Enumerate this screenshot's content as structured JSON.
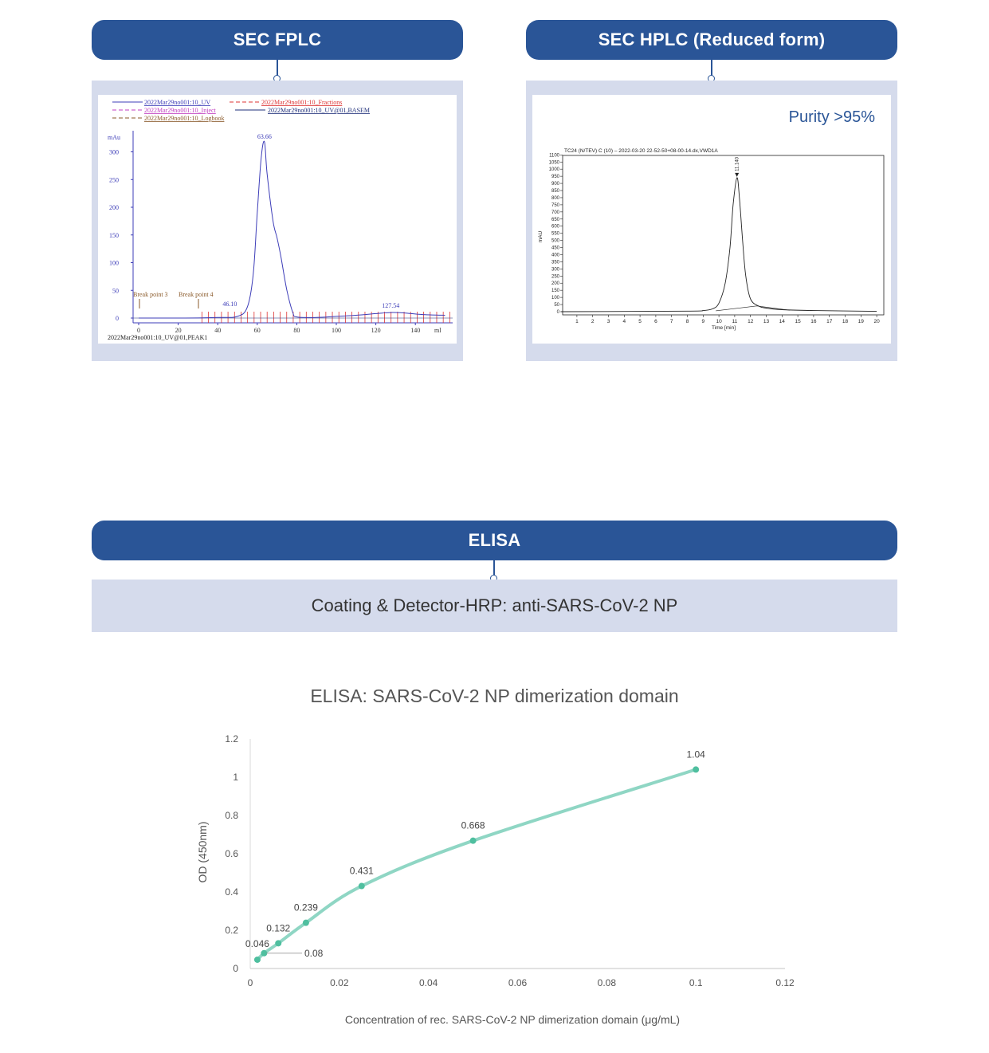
{
  "headers": {
    "sec_fplc": "SEC FPLC",
    "sec_hplc": "SEC HPLC (Reduced form)",
    "elisa": "ELISA"
  },
  "fplc": {
    "legend": [
      {
        "label": "2022Mar29no001:10_UV",
        "color": "#3d3db8"
      },
      {
        "label": "2022Mar29no001:10_Fractions",
        "color": "#d33"
      },
      {
        "label": "2022Mar29no001:10_Inject",
        "color": "#c03cc0"
      },
      {
        "label": "2022Mar29no001:10_UV@01,BASEM",
        "color": "#1f2f7a"
      },
      {
        "label": "2022Mar29no001:10_Logbook",
        "color": "#8a5a2a"
      }
    ],
    "y_unit": "mAu",
    "y_ticks": [
      "0",
      "50",
      "100",
      "150",
      "200",
      "250",
      "300"
    ],
    "x_ticks": [
      "0",
      "20",
      "40",
      "60",
      "80",
      "100",
      "120",
      "140"
    ],
    "x_unit": "ml",
    "peak_label": "63.66",
    "minor_peak_1": "46.10",
    "minor_peak_2": "127.54",
    "break_point_3": "Break point 3",
    "break_point_4": "Break point 4",
    "footer": "2022Mar29no001:10_UV@01,PEAK1"
  },
  "hplc": {
    "purity": "Purity >95%",
    "title": "TC24 (N/TEV) C (10) – 2022-03-20 22-52-50+08-00-14.dx,VWD1A",
    "y_label": "mAU",
    "x_label": "Time [min]",
    "peak_label": "11.140",
    "y_ticks": [
      "0",
      "50",
      "100",
      "150",
      "200",
      "250",
      "300",
      "350",
      "400",
      "450",
      "500",
      "550",
      "600",
      "650",
      "700",
      "750",
      "800",
      "850",
      "900",
      "950",
      "1000",
      "1050",
      "1100"
    ],
    "x_ticks": [
      "1",
      "2",
      "3",
      "4",
      "5",
      "6",
      "7",
      "8",
      "9",
      "10",
      "11",
      "12",
      "13",
      "14",
      "15",
      "16",
      "17",
      "18",
      "19",
      "20"
    ]
  },
  "elisa": {
    "band_text": "Coating & Detector-HRP: anti-SARS-CoV-2 NP",
    "chart_title": "ELISA: SARS-CoV-2 NP dimerization domain"
  },
  "chart_data": [
    {
      "type": "line",
      "panel": "SEC FPLC",
      "x": [
        0,
        20,
        40,
        50,
        55,
        58,
        60,
        62,
        63.66,
        65,
        68,
        70,
        72,
        75,
        78,
        80,
        90,
        100,
        110,
        120,
        127.54,
        135,
        145,
        155
      ],
      "y": [
        0,
        0,
        1,
        3,
        20,
        80,
        190,
        290,
        318,
        260,
        175,
        145,
        110,
        50,
        10,
        2,
        1,
        3,
        5,
        8,
        10,
        9,
        6,
        5
      ],
      "xlabel": "ml",
      "ylabel": "mAu",
      "xlim": [
        -5,
        160
      ],
      "ylim": [
        -5,
        330
      ],
      "annotations": [
        "63.66",
        "46.10",
        "127.54",
        "Break point 3",
        "Break point 4"
      ]
    },
    {
      "type": "line",
      "panel": "SEC HPLC (Reduced form)",
      "x": [
        0,
        8,
        9,
        9.6,
        10.0,
        10.4,
        10.7,
        10.9,
        11.14,
        11.3,
        11.5,
        11.7,
        12.0,
        12.5,
        13,
        14,
        16,
        20
      ],
      "y": [
        0,
        4,
        8,
        20,
        60,
        200,
        450,
        750,
        940,
        800,
        500,
        250,
        90,
        40,
        25,
        14,
        8,
        2
      ],
      "xlabel": "Time [min]",
      "ylabel": "mAU",
      "xlim": [
        0,
        20.5
      ],
      "ylim": [
        -10,
        1100
      ],
      "annotations": [
        "11.140"
      ]
    },
    {
      "type": "line",
      "title": "ELISA: SARS-CoV-2 NP dimerization domain",
      "xlabel": "Concentration of rec. SARS-CoV-2 NP dimerization domain (μg/mL)",
      "ylabel": "OD (450nm)",
      "x": [
        0.0016,
        0.0031,
        0.0063,
        0.0125,
        0.025,
        0.05,
        0.1
      ],
      "y": [
        0.046,
        0.08,
        0.132,
        0.239,
        0.431,
        0.668,
        1.04
      ],
      "data_labels": [
        "0.046",
        "0.08",
        "0.132",
        "0.239",
        "0.431",
        "0.668",
        "1.04"
      ],
      "xlim": [
        0,
        0.12
      ],
      "ylim": [
        0,
        1.2
      ],
      "x_ticks": [
        "0",
        "0.02",
        "0.04",
        "0.06",
        "0.08",
        "0.1",
        "0.12"
      ],
      "y_ticks": [
        "0",
        "0.2",
        "0.4",
        "0.6",
        "0.8",
        "1",
        "1.2"
      ],
      "grid": false,
      "color": "#8fd6c4",
      "marker_color": "#4fbf9f"
    }
  ]
}
